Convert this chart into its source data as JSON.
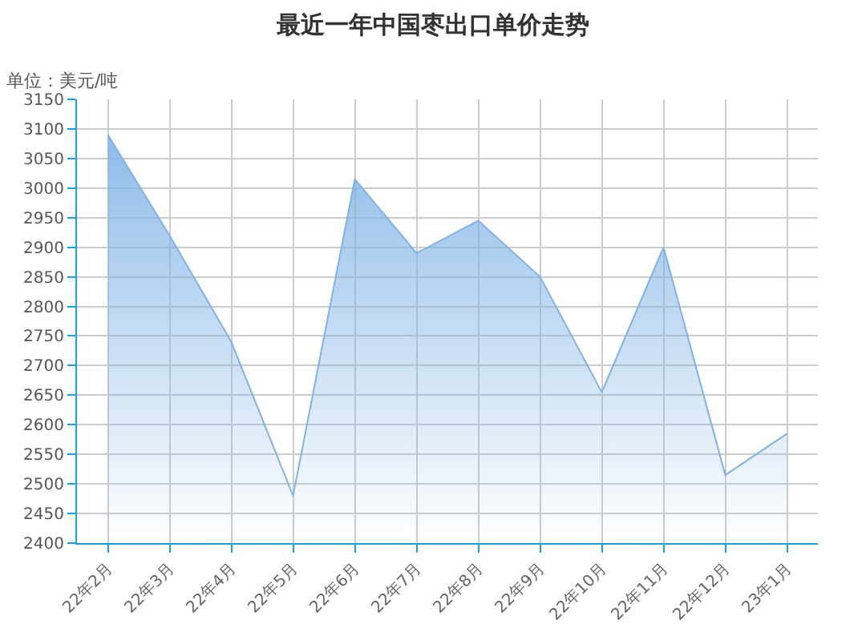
{
  "chart_data": {
    "type": "area",
    "title": "最近一年中国枣出口单价走势",
    "ylabel": "单位：美元/吨",
    "categories": [
      "22年2月",
      "22年3月",
      "22年4月",
      "22年5月",
      "22年6月",
      "22年7月",
      "22年8月",
      "22年9月",
      "22年10月",
      "22年11月",
      "22年12月",
      "23年1月"
    ],
    "series": [
      {
        "color": "#7fb2e5",
        "values": [
          3090,
          2920,
          2740,
          2480,
          3015,
          2890,
          2945,
          2850,
          2655,
          2900,
          2515,
          2585
        ]
      }
    ],
    "ylim": [
      2400,
      3150
    ],
    "yticks": [
      2400,
      2450,
      2500,
      2550,
      2600,
      2650,
      2700,
      2750,
      2800,
      2850,
      2900,
      2950,
      3000,
      3050,
      3100,
      3150
    ],
    "grid": true,
    "marker": "none",
    "line_style": "solid"
  }
}
